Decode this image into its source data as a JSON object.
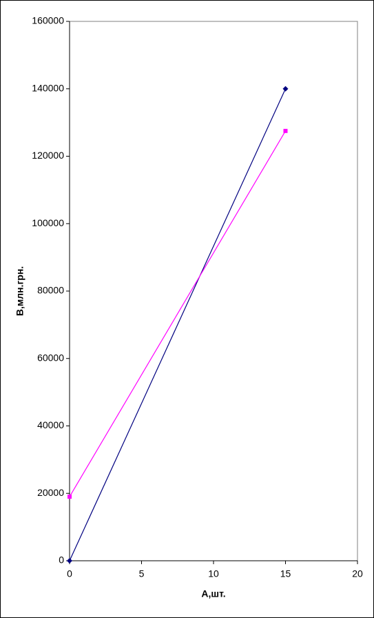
{
  "chart_data": {
    "type": "line",
    "xlabel": "А,шт.",
    "ylabel": "В,млн.грн.",
    "x": [
      0,
      15
    ],
    "series": [
      {
        "color": "#000080",
        "marker": "diamond",
        "values": [
          0,
          140000
        ]
      },
      {
        "color": "#ff00ff",
        "marker": "square",
        "values": [
          19000,
          127500
        ]
      }
    ],
    "xlim": [
      0,
      20
    ],
    "xticks": [
      0,
      5,
      10,
      15,
      20
    ],
    "ylim": [
      0,
      160000
    ],
    "yticks": [
      0,
      20000,
      40000,
      60000,
      80000,
      100000,
      120000,
      140000,
      160000
    ],
    "grid": false
  }
}
